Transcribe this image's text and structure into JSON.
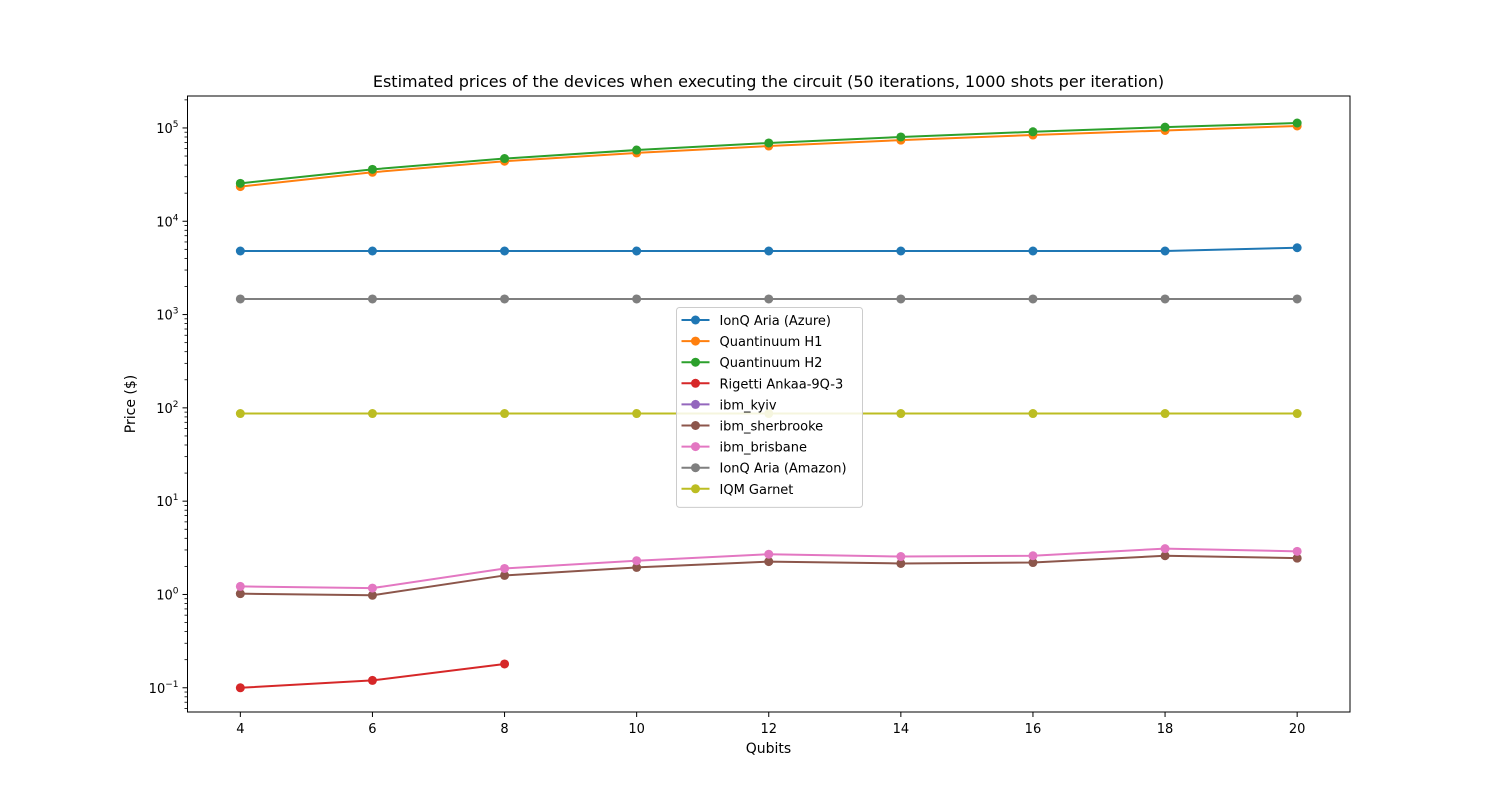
{
  "chart_data": {
    "type": "line",
    "title": "Estimated prices of the devices when executing the circuit (50 iterations, 1000 shots per iteration)",
    "xlabel": "Qubits",
    "ylabel": "Price ($)",
    "yscale": "log",
    "xlim": [
      3.2,
      20.8
    ],
    "ylim": [
      0.055,
      220000
    ],
    "x_ticks": [
      4,
      6,
      8,
      10,
      12,
      14,
      16,
      18,
      20
    ],
    "y_ticks": [
      {
        "value": 0.1,
        "base": "10",
        "exp": "−1"
      },
      {
        "value": 1,
        "base": "10",
        "exp": "0"
      },
      {
        "value": 10,
        "base": "10",
        "exp": "1"
      },
      {
        "value": 100,
        "base": "10",
        "exp": "2"
      },
      {
        "value": 1000,
        "base": "10",
        "exp": "3"
      },
      {
        "value": 10000,
        "base": "10",
        "exp": "4"
      },
      {
        "value": 100000,
        "base": "10",
        "exp": "5"
      }
    ],
    "grid": false,
    "legend_position": "center",
    "x": [
      4,
      6,
      8,
      10,
      12,
      14,
      16,
      18,
      20
    ],
    "series": [
      {
        "name": "IonQ Aria (Azure)",
        "color": "#1f77b4",
        "values": [
          4800,
          4800,
          4800,
          4800,
          4800,
          4800,
          4800,
          4800,
          5200
        ]
      },
      {
        "name": "Quantinuum H1",
        "color": "#ff7f0e",
        "values": [
          23500,
          33500,
          44000,
          54000,
          64000,
          74000,
          84000,
          94000,
          105000
        ]
      },
      {
        "name": "Quantinuum H2",
        "color": "#2ca02c",
        "values": [
          25500,
          36000,
          47000,
          58000,
          69000,
          80000,
          91000,
          102000,
          113000
        ]
      },
      {
        "name": "Rigetti Ankaa-9Q-3",
        "color": "#d62728",
        "values": [
          0.1,
          0.12,
          0.18,
          null,
          null,
          null,
          null,
          null,
          null
        ]
      },
      {
        "name": "ibm_kyiv",
        "color": "#9467bd",
        "values": [
          null,
          null,
          null,
          null,
          null,
          null,
          null,
          null,
          null
        ]
      },
      {
        "name": "ibm_sherbrooke",
        "color": "#8c564b",
        "values": [
          1.02,
          0.98,
          1.6,
          1.95,
          2.25,
          2.15,
          2.2,
          2.6,
          2.45
        ]
      },
      {
        "name": "ibm_brisbane",
        "color": "#e377c2",
        "values": [
          1.22,
          1.17,
          1.9,
          2.3,
          2.7,
          2.55,
          2.6,
          3.1,
          2.9
        ]
      },
      {
        "name": "IonQ Aria (Amazon)",
        "color": "#7f7f7f",
        "values": [
          1470,
          1470,
          1470,
          1470,
          1470,
          1470,
          1470,
          1470,
          1470
        ]
      },
      {
        "name": "IQM Garnet",
        "color": "#bcbd22",
        "values": [
          87,
          87,
          87,
          87,
          87,
          87,
          87,
          87,
          87
        ]
      }
    ]
  }
}
